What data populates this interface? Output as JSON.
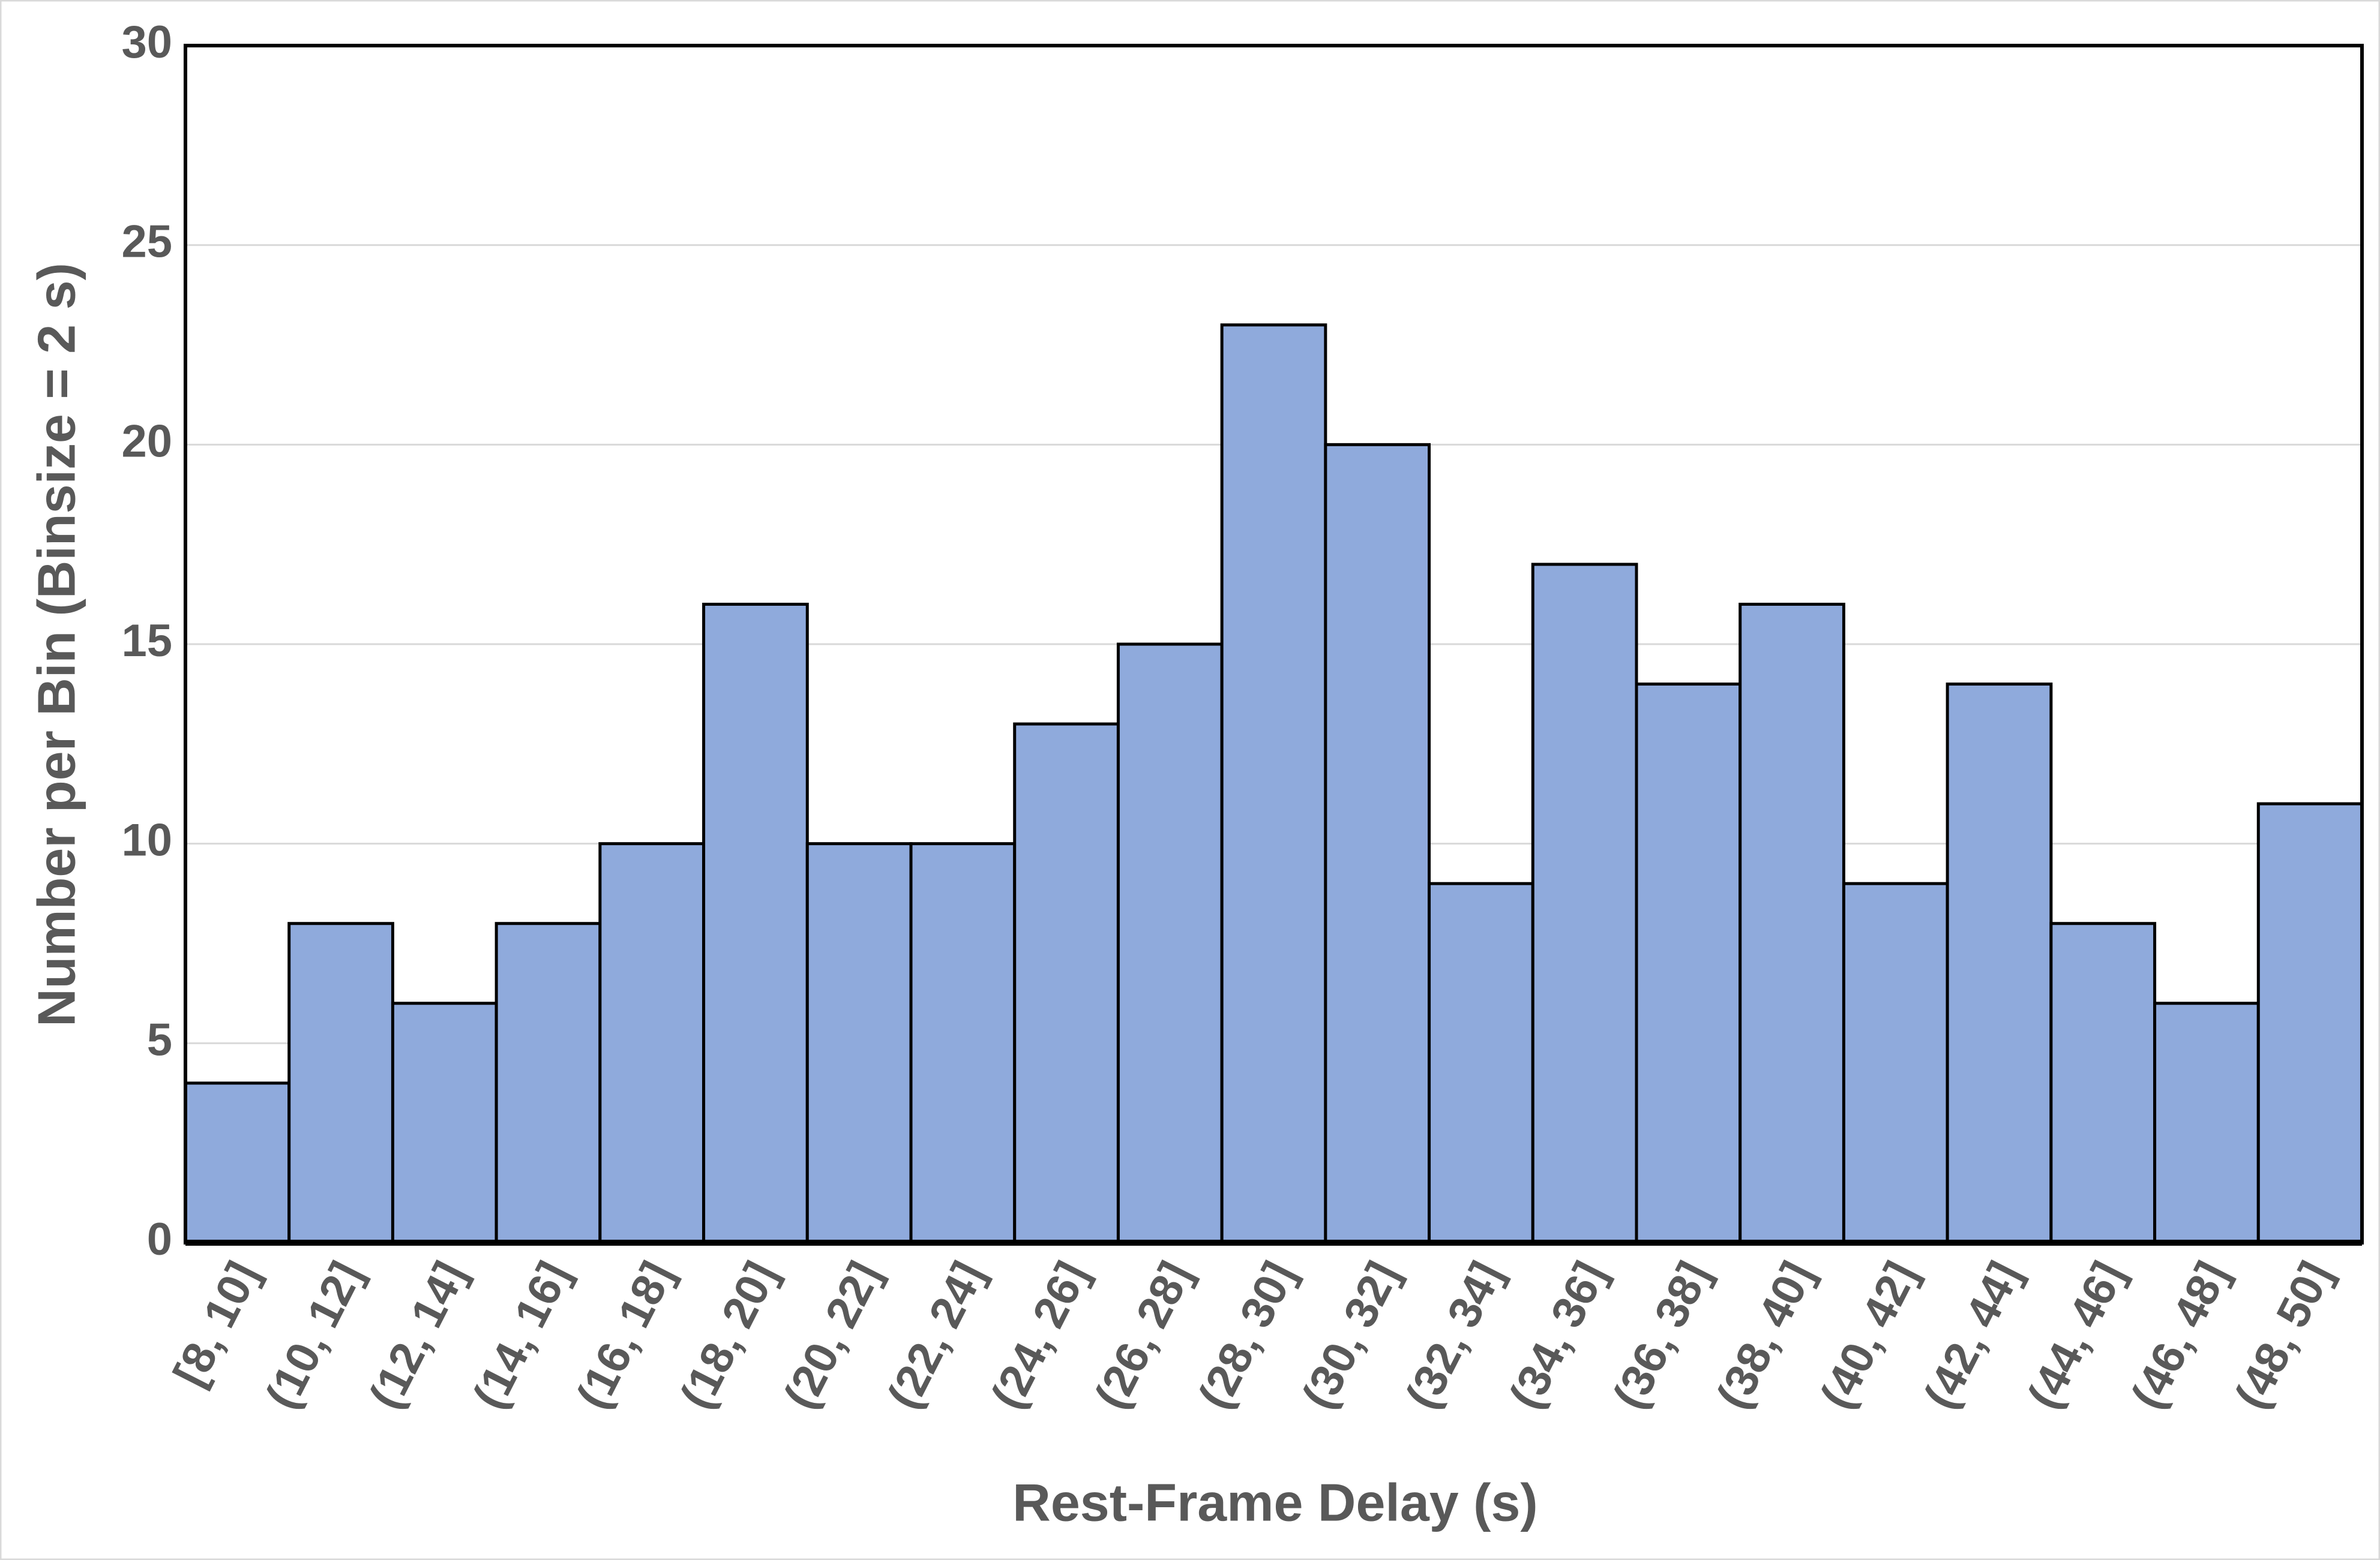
{
  "chart_data": {
    "type": "bar",
    "x_label": "Rest-Frame Delay (s)",
    "y_label": "Number per Bin (Binsize = 2 s)",
    "categories": [
      "[8, 10]",
      "(10, 12]",
      "(12, 14]",
      "(14, 16]",
      "(16, 18]",
      "(18, 20]",
      "(20, 22]",
      "(22, 24]",
      "(24, 26]",
      "(26, 28]",
      "(28, 30]",
      "(30, 32]",
      "(32, 34]",
      "(34, 36]",
      "(36, 38]",
      "(38, 40]",
      "(40, 42]",
      "(42, 44]",
      "(44, 46]",
      "(46, 48]",
      "(48, 50]"
    ],
    "values": [
      4,
      8,
      6,
      8,
      10,
      16,
      10,
      10,
      13,
      15,
      23,
      20,
      9,
      17,
      14,
      16,
      9,
      14,
      8,
      6,
      11
    ],
    "color": "#8faadc",
    "ylim": [
      0,
      30
    ],
    "yticks": [
      0,
      5,
      10,
      15,
      20,
      25,
      30
    ],
    "grid": true
  }
}
